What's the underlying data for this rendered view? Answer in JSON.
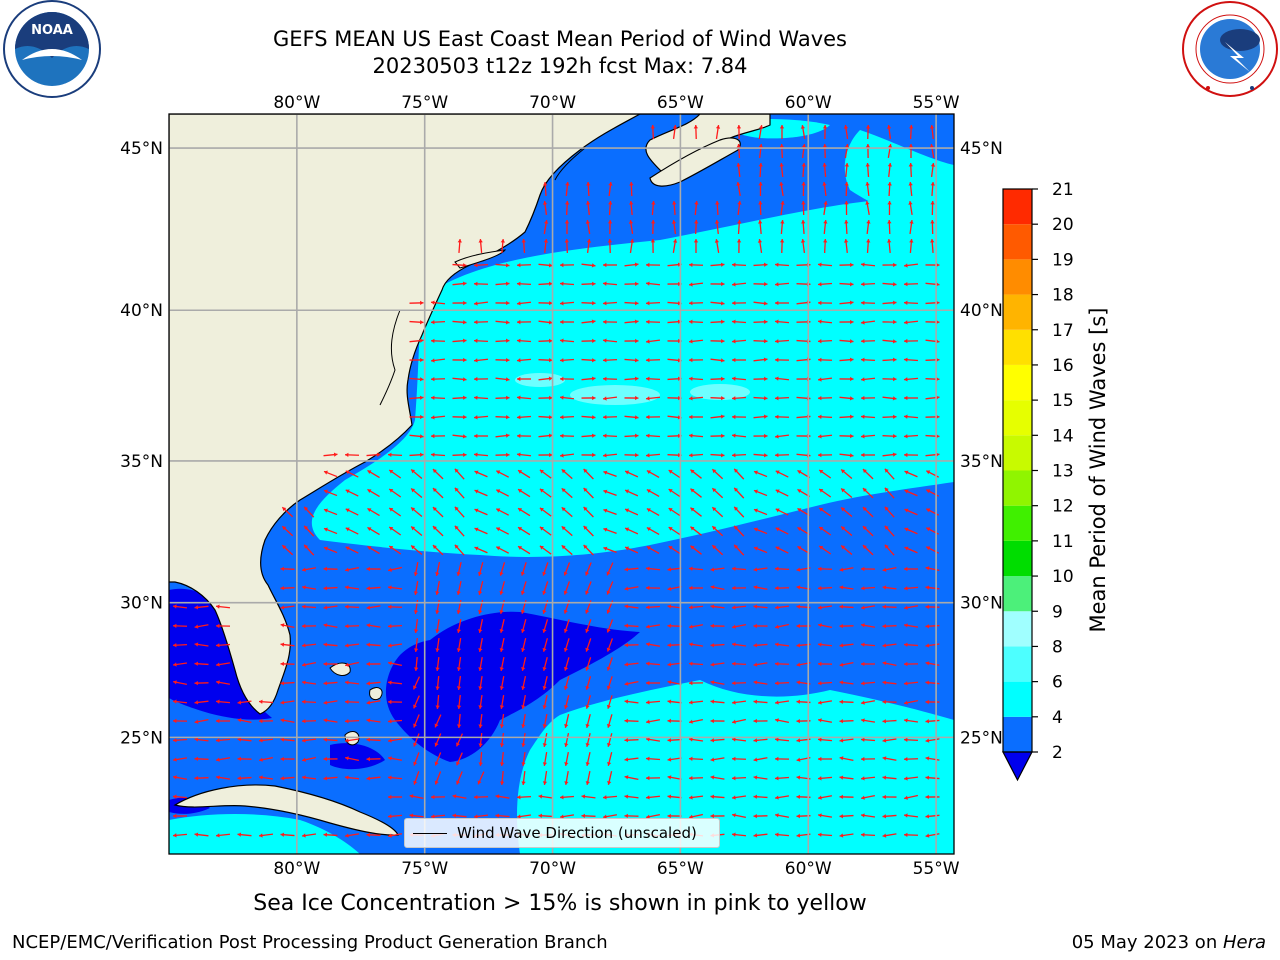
{
  "title": {
    "line1": "GEFS MEAN US East Coast Mean Period of Wind Waves",
    "line2": "20230503 t12z 192h fcst   Max: 7.84"
  },
  "logos": {
    "left": {
      "name": "noaa-logo",
      "text": "NOAA",
      "ring_top": "NATIONAL OCEANIC AND ATMOSPHERIC ADMINISTRATION",
      "ring_bottom": "U.S. DEPARTMENT OF COMMERCE"
    },
    "right": {
      "name": "nws-logo",
      "ring_text": "NATIONAL WEATHER SERVICE"
    }
  },
  "map": {
    "lon_range": [
      -85,
      -54.3
    ],
    "lat_range": [
      20.5,
      46
    ],
    "lon_ticks": [
      "80°W",
      "75°W",
      "70°W",
      "65°W",
      "60°W",
      "55°W"
    ],
    "lon_values": [
      -80,
      -75,
      -70,
      -65,
      -60,
      -55
    ],
    "lat_ticks": [
      "45°N",
      "40°N",
      "35°N",
      "30°N",
      "25°N"
    ],
    "lat_values": [
      45,
      40,
      35,
      30,
      25
    ],
    "colors": {
      "land": "#efefdc",
      "period_lt2": "#0000ee",
      "period_2_4": "#0a6eff",
      "period_4_6": "#00ffff",
      "period_6_8": "#6dffff",
      "arrow": "#ff1a1a"
    },
    "legend_label": "Wind Wave Direction (unscaled)"
  },
  "colorbar": {
    "label": "Mean Period of Wind Waves [s]",
    "ticks": [
      "2",
      "4",
      "6",
      "8",
      "9",
      "10",
      "11",
      "12",
      "13",
      "14",
      "15",
      "16",
      "17",
      "18",
      "19",
      "20",
      "21"
    ],
    "colors": [
      "#0a6eff",
      "#00ffff",
      "#4dffff",
      "#a0ffff",
      "#4cf07a",
      "#00dd00",
      "#40f000",
      "#90f500",
      "#c8fa00",
      "#e6ff00",
      "#ffff00",
      "#ffe000",
      "#ffb400",
      "#ff8c00",
      "#ff5a00",
      "#ff2a00"
    ],
    "extend_color": "#0000ee"
  },
  "caption": "Sea Ice Concentration > 15% is shown in pink to yellow",
  "footer": {
    "left": "NCEP/EMC/Verification Post Processing Product Generation Branch",
    "right_date": "05 May 2023 on ",
    "right_host": "Hera"
  }
}
